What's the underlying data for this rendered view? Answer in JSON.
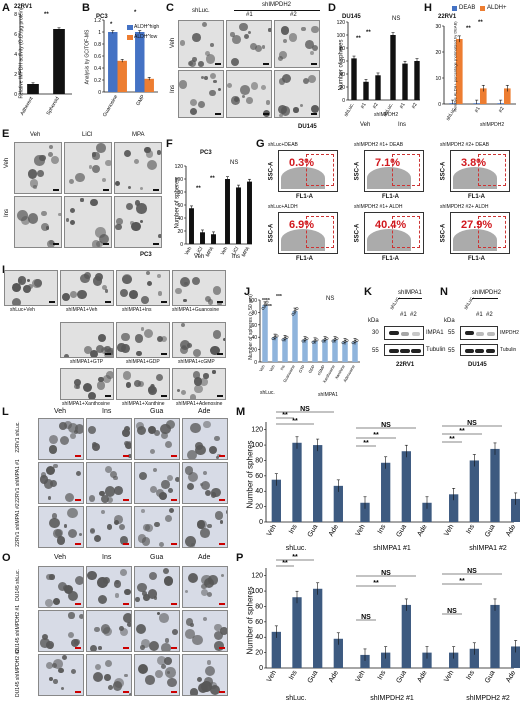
{
  "panel_letters": {
    "A": "A",
    "B": "B",
    "C": "C",
    "D": "D",
    "E": "E",
    "F": "F",
    "G": "G",
    "H": "H",
    "I": "I",
    "J": "J",
    "K": "K",
    "L": "L",
    "M": "M",
    "N": "N",
    "O": "O",
    "P": "P"
  },
  "panelA": {
    "cell": "22RV1",
    "ylabel": "Relative IMPDH activity (O.D./μg protein)",
    "sig": "**"
  },
  "panelB": {
    "cell": "PC3",
    "ylabel": "Analysis by GC/TOF-MS",
    "legend": [
      "ALDH^high",
      "ALDH^low"
    ],
    "sig": [
      "*",
      "*"
    ]
  },
  "panelC": {
    "col_headers": [
      "shLuc.",
      "#1",
      "#2"
    ],
    "group_header": "shIMPDH2",
    "rows": [
      "Veh",
      "Ins"
    ],
    "cell": "DU145"
  },
  "panelD": {
    "cell": "DU145",
    "ylabel": "Number of spheres",
    "group_labels": [
      "Veh",
      "Ins"
    ],
    "sig": [
      "**",
      "**",
      "NS"
    ],
    "sub": [
      "shLuc.",
      "#1",
      "#2",
      "shLuc.",
      "#1",
      "#2"
    ],
    "shIMPDH2": "shIMPDH2"
  },
  "panelE": {
    "col_headers": [
      "Veh",
      "LiCl",
      "MPA"
    ],
    "rows": [
      "Veh",
      "Ins"
    ],
    "cell": "PC3"
  },
  "panelF": {
    "cell": "PC3",
    "ylabel": "Number of spheres",
    "sig": [
      "**",
      "**",
      "NS"
    ],
    "group_labels": [
      "Veh",
      "Ins"
    ]
  },
  "panelG": {
    "cells": [
      {
        "title": "shLuc+DEAB",
        "pct": "0.3%"
      },
      {
        "title": "shIMPDH2 #1+ DEAB",
        "pct": "7.1%"
      },
      {
        "title": "shIMPDH2 #2+ DEAB",
        "pct": "3.8%"
      },
      {
        "title": "shLuc+ALDH",
        "pct": "6.9%"
      },
      {
        "title": "shIMPDH2 #1+ ALDH",
        "pct": "40.4%"
      },
      {
        "title": "shIMPDH2 #2+ ALDH",
        "pct": "27.9%"
      }
    ],
    "xaxis": "FL1-A",
    "yaxis": "SSC-A"
  },
  "panelH": {
    "cell": "22RV1",
    "legend": [
      "DEAB",
      "ALDH+"
    ],
    "ylabel": "Relative ALDH+ percentage (normalized by DEAB)",
    "sig": [
      "**",
      "**"
    ],
    "sub": [
      "shLuc.",
      "#1",
      "#2"
    ],
    "shIMPDH2": "shIMPDH2"
  },
  "panelI": {
    "row1": [
      "shLuc+Veh",
      "shIMPA1+Veh",
      "shIMPA1+Ins",
      "shIMPA1+Guanosine"
    ],
    "row2": [
      "shIMPA1+GTP",
      "shIMPA1+GDP",
      "shIMPA1+cGMP"
    ],
    "row3": [
      "shIMPA1+Xanthosine",
      "shIMPA1+Xanthine",
      "shIMPA1+Adenosine"
    ]
  },
  "panelJ": {
    "ylabel": "Number of spheres (> 50 μm)",
    "cats": [
      "Veh",
      "Veh",
      "Ins",
      "Guanosine",
      "GTP",
      "GDP",
      "cGMP",
      "Xanthosine",
      "Xanthine",
      "Adenosine"
    ],
    "group": [
      "shLuc.",
      "shIMPA1"
    ],
    "sig": [
      "****",
      "***",
      "***",
      "NS"
    ]
  },
  "panelK": {
    "kda": "kDa",
    "marks": [
      "30",
      "55"
    ],
    "lanes": [
      "shLuc.",
      "#1",
      "#2"
    ],
    "header": "shIMPA1",
    "proteins": [
      "IMPA1",
      "Tubulin"
    ],
    "cell": "22RV1"
  },
  "panelN": {
    "kda": "kDa",
    "marks": [
      "55",
      "55"
    ],
    "lanes": [
      "shLuc.",
      "#1",
      "#2"
    ],
    "header": "shIMPDH2",
    "proteins": [
      "IMPDH2",
      "Tubulin"
    ],
    "cell": "DU145"
  },
  "panelL": {
    "cols": [
      "Veh",
      "Ins",
      "Gua",
      "Ade"
    ],
    "rows": [
      "22RV1 shLuc.",
      "22RV1 shIMPA1 #1",
      "22RV1 shIMPA1 #2"
    ]
  },
  "panelO": {
    "cols": [
      "Veh",
      "Ins",
      "Gua",
      "Ade"
    ],
    "rows": [
      "DU145 shLuc.",
      "DU145 shIMPDH2 #1",
      "DU145 shIMPDH2 #2"
    ]
  },
  "chart_data": [
    {
      "id": "A",
      "type": "bar",
      "categories": [
        "Adherent",
        "Spheroid"
      ],
      "values": [
        1,
        6.5
      ],
      "ylim": [
        0,
        8
      ]
    },
    {
      "id": "B",
      "type": "bar",
      "categories": [
        "Guanosine",
        "GMP"
      ],
      "series": [
        {
          "name": "ALDH^high",
          "values": [
            1.0,
            1.0
          ]
        },
        {
          "name": "ALDH^low",
          "values": [
            0.52,
            0.22
          ]
        }
      ],
      "ylim": [
        0,
        1.2
      ]
    },
    {
      "id": "D",
      "type": "bar",
      "categories": [
        "shLuc.",
        "#1",
        "#2",
        "shLuc.",
        "#1",
        "#2"
      ],
      "values": [
        64,
        28,
        38,
        100,
        56,
        60
      ],
      "ylim": [
        0,
        120
      ]
    },
    {
      "id": "F",
      "type": "bar",
      "categories": [
        "Veh",
        "LiCl",
        "MPA",
        "Veh",
        "LiCl",
        "MPA"
      ],
      "values": [
        55,
        18,
        15,
        100,
        87,
        96
      ],
      "ylim": [
        0,
        120
      ]
    },
    {
      "id": "H",
      "type": "bar",
      "categories": [
        "shLuc.",
        "#1",
        "#2"
      ],
      "series": [
        {
          "name": "DEAB",
          "values": [
            0.3,
            0.3,
            0.3
          ]
        },
        {
          "name": "ALDH+",
          "values": [
            25,
            6,
            6
          ]
        }
      ],
      "ylim": [
        0,
        30
      ]
    },
    {
      "id": "J",
      "type": "bar",
      "categories": [
        "Veh",
        "Veh",
        "Ins",
        "Guanosine",
        "GTP",
        "GDP",
        "cGMP",
        "Xanthosine",
        "Xanthine",
        "Adenosine"
      ],
      "values": [
        92,
        40,
        38,
        82,
        36,
        34,
        36,
        36,
        33,
        33
      ],
      "ylim": [
        0,
        100
      ]
    },
    {
      "id": "M",
      "type": "bar",
      "categories": [
        "Veh",
        "Ins",
        "Gua",
        "Ade",
        "Veh",
        "Ins",
        "Gua",
        "Ade",
        "Veh",
        "Ins",
        "Gua",
        "Ade"
      ],
      "groups": [
        "shLuc.",
        "shIMPA1 #1",
        "shIMPA1 #2"
      ],
      "values": [
        55,
        103,
        100,
        47,
        25,
        77,
        92,
        25,
        36,
        80,
        95,
        30
      ],
      "ylim": [
        0,
        130
      ],
      "ylabel": "Number of spheres"
    },
    {
      "id": "P",
      "type": "bar",
      "categories": [
        "Veh",
        "Ins",
        "Gua",
        "Ade",
        "Veh",
        "Ins",
        "Gua",
        "Ade",
        "Veh",
        "Ins",
        "Gua",
        "Ade"
      ],
      "groups": [
        "shLuc.",
        "shIMPDH2 #1",
        "shIMPDH2 #2"
      ],
      "values": [
        47,
        92,
        103,
        38,
        17,
        20,
        82,
        20,
        20,
        25,
        82,
        28
      ],
      "ylim": [
        0,
        130
      ],
      "ylabel": "Number of spheres"
    }
  ]
}
